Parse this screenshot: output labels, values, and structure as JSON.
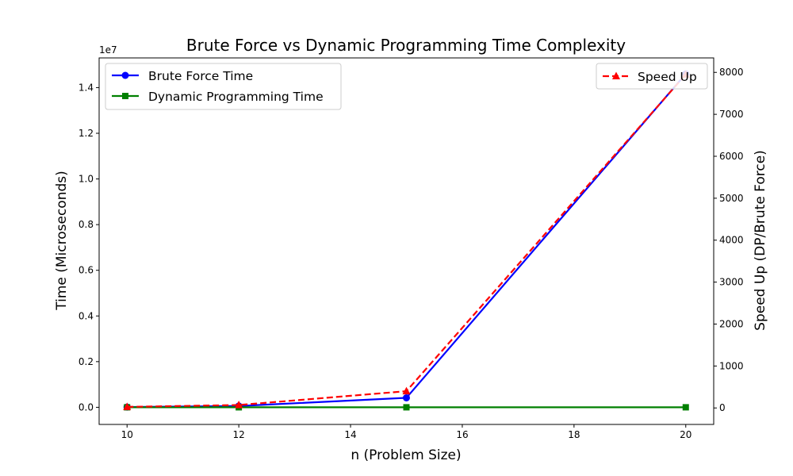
{
  "chart_data": {
    "type": "line",
    "title": "Brute Force vs Dynamic Programming Time Complexity",
    "xlabel": "n (Problem Size)",
    "ylabel_left": "Time (Microseconds)",
    "ylabel_right": "Speed Up (DP/Brute Force)",
    "left_offset_label": "1e7",
    "x": [
      10,
      12,
      15,
      20
    ],
    "xlim": [
      9.5,
      20.5
    ],
    "ylim_left": [
      -0.075,
      1.53
    ],
    "ylim_right": [
      -393,
      8345
    ],
    "x_ticks": [
      10,
      12,
      14,
      16,
      18,
      20
    ],
    "y_left_ticks": [
      0.0,
      0.2,
      0.4,
      0.6,
      0.8,
      1.0,
      1.2,
      1.4
    ],
    "y_left_tick_labels": [
      "0.0",
      "0.2",
      "0.4",
      "0.6",
      "0.8",
      "1.0",
      "1.2",
      "1.4"
    ],
    "y_right_ticks": [
      0,
      1000,
      2000,
      3000,
      4000,
      5000,
      6000,
      7000,
      8000
    ],
    "series": [
      {
        "name": "Brute Force Time",
        "axis": "left",
        "color": "#0000ff",
        "linestyle": "solid",
        "marker": "circle",
        "values": [
          0.0011,
          0.0059,
          0.0415,
          1.46
        ]
      },
      {
        "name": "Dynamic Programming Time",
        "axis": "left",
        "color": "#008000",
        "linestyle": "solid",
        "marker": "square",
        "values": [
          2e-05,
          3e-05,
          4e-05,
          5e-05
        ]
      },
      {
        "name": "Speed Up",
        "axis": "right",
        "color": "#ff0000",
        "linestyle": "dashed",
        "marker": "triangle",
        "values": [
          25,
          70,
          400,
          7950
        ]
      }
    ],
    "grid": false,
    "legend_left_placement": "upper-left",
    "legend_right_placement": "upper-right"
  }
}
